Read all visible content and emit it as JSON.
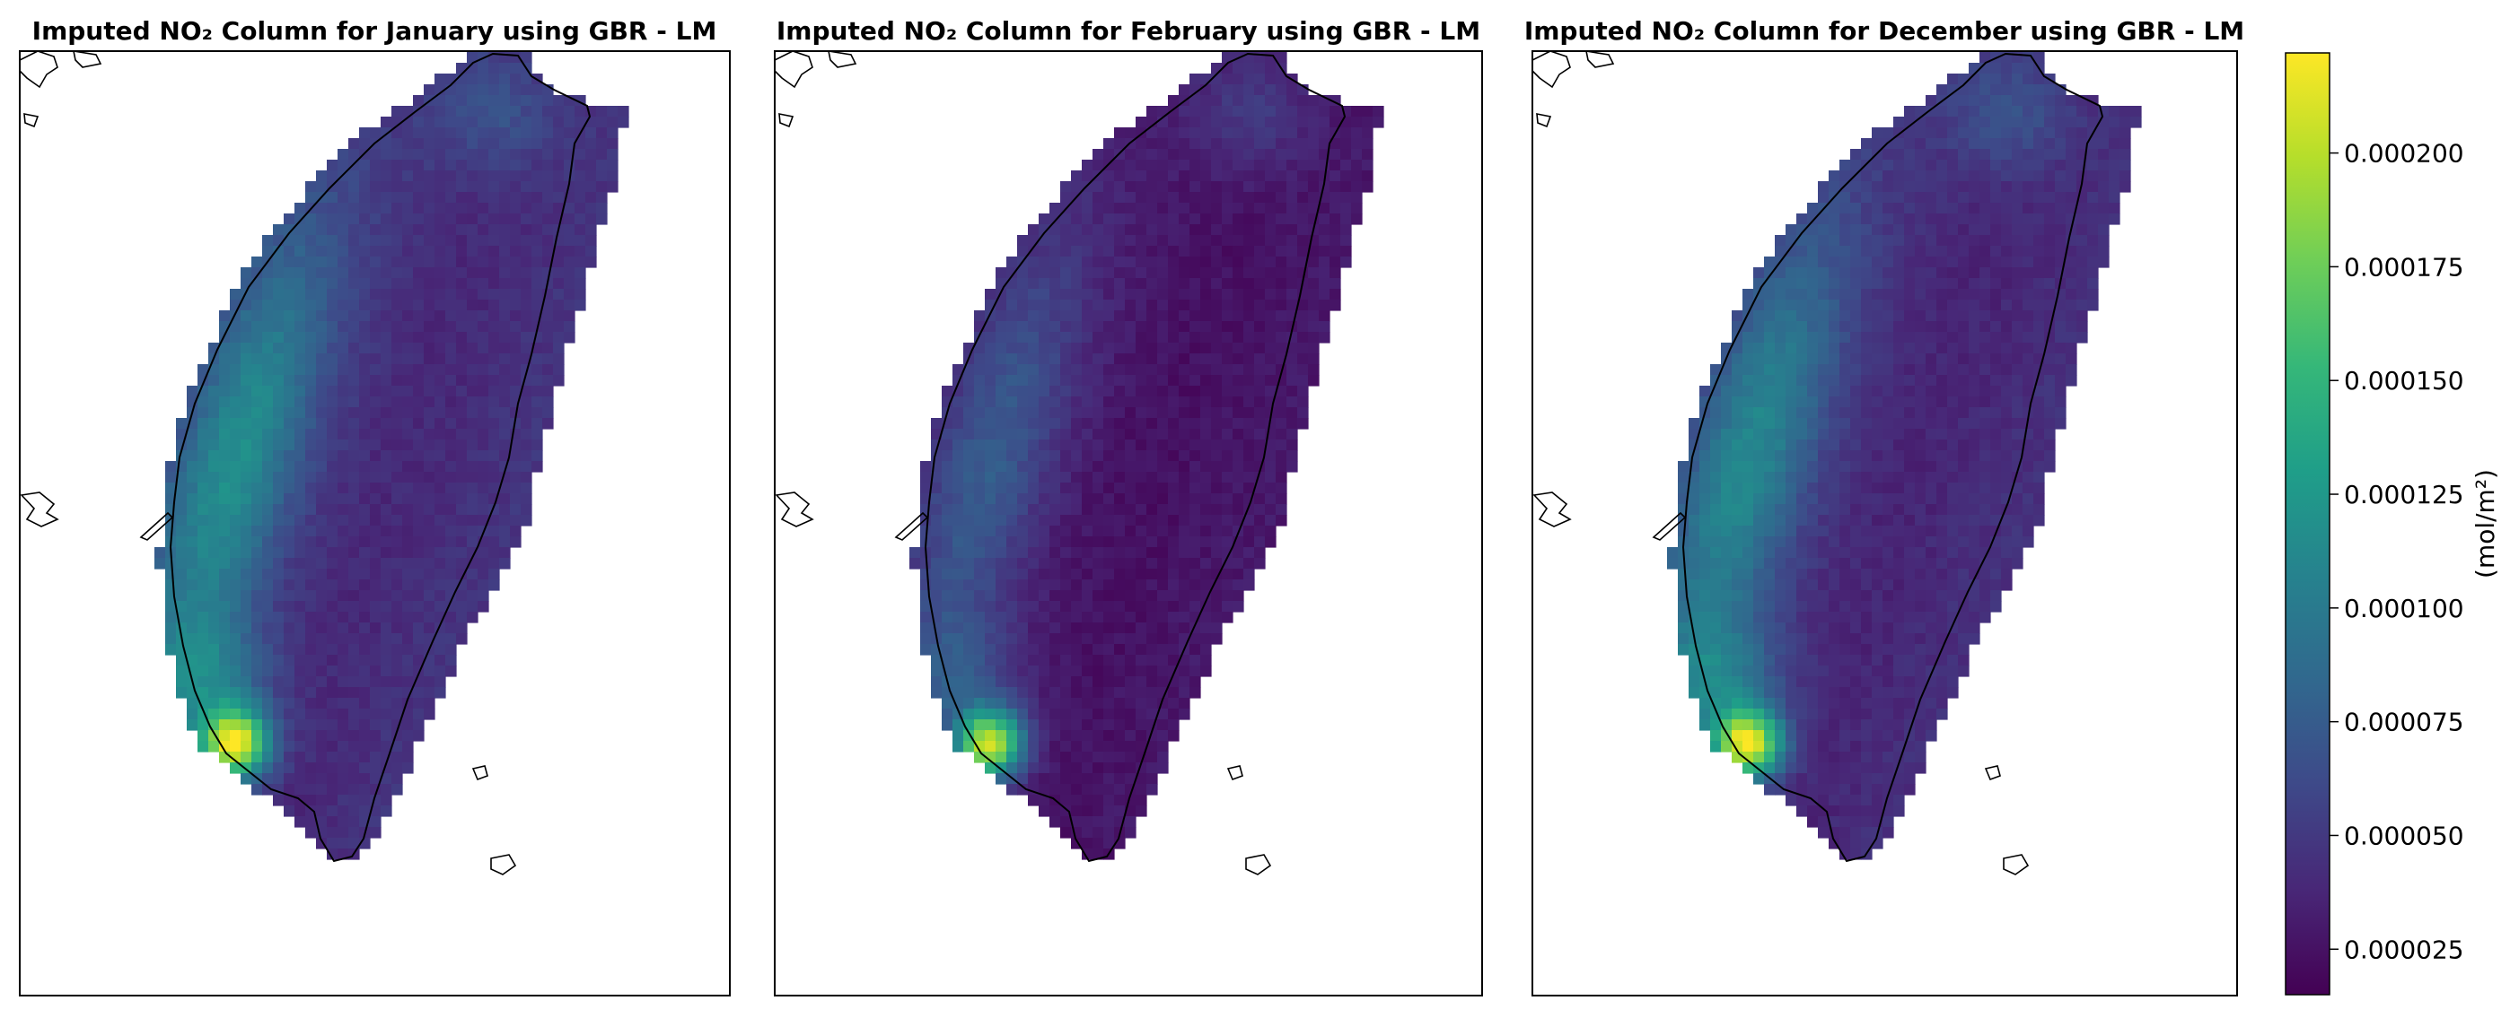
{
  "figure": {
    "colormap": "viridis",
    "colormap_stops": [
      "#440154",
      "#482777",
      "#3e4989",
      "#31688e",
      "#26828e",
      "#1f9e89",
      "#35b779",
      "#6ece58",
      "#b5de2b",
      "#fde725"
    ]
  },
  "chart_data": [
    {
      "type": "heatmap",
      "title": "Imputed NO₂ Column for January using GBR - LM",
      "month": "January",
      "region": "Taiwan",
      "background_level": 4.8e-05,
      "hotspots": [
        {
          "name": "southwest-coast",
          "value": 0.000215
        },
        {
          "name": "western-corridor",
          "value": 0.000125
        },
        {
          "name": "northern-tip",
          "value": 7.5e-05
        }
      ],
      "vmin": 1.5e-05,
      "vmax": 0.000222
    },
    {
      "type": "heatmap",
      "title": "Imputed NO₂ Column for February using GBR - LM",
      "month": "February",
      "region": "Taiwan",
      "background_level": 3e-05,
      "hotspots": [
        {
          "name": "southwest-coast",
          "value": 0.0002
        },
        {
          "name": "western-corridor",
          "value": 8e-05
        },
        {
          "name": "northern-tip",
          "value": 5.5e-05
        }
      ],
      "vmin": 1.5e-05,
      "vmax": 0.000222
    },
    {
      "type": "heatmap",
      "title": "Imputed NO₂ Column for December using GBR - LM",
      "month": "December",
      "region": "Taiwan",
      "background_level": 4.5e-05,
      "hotspots": [
        {
          "name": "southwest-coast",
          "value": 0.000212
        },
        {
          "name": "western-corridor",
          "value": 0.00012
        },
        {
          "name": "northern-tip",
          "value": 7.5e-05
        }
      ],
      "vmin": 1.5e-05,
      "vmax": 0.000222
    }
  ],
  "colorbar": {
    "label": "(mol/m²)",
    "vmin": 1.5e-05,
    "vmax": 0.000222,
    "ticks": [
      2.5e-05,
      5e-05,
      7.5e-05,
      0.0001,
      0.000125,
      0.00015,
      0.000175,
      0.0002
    ],
    "tick_labels": [
      "0.000025",
      "0.000050",
      "0.000075",
      "0.000100",
      "0.000125",
      "0.000150",
      "0.000175",
      "0.000200"
    ]
  }
}
